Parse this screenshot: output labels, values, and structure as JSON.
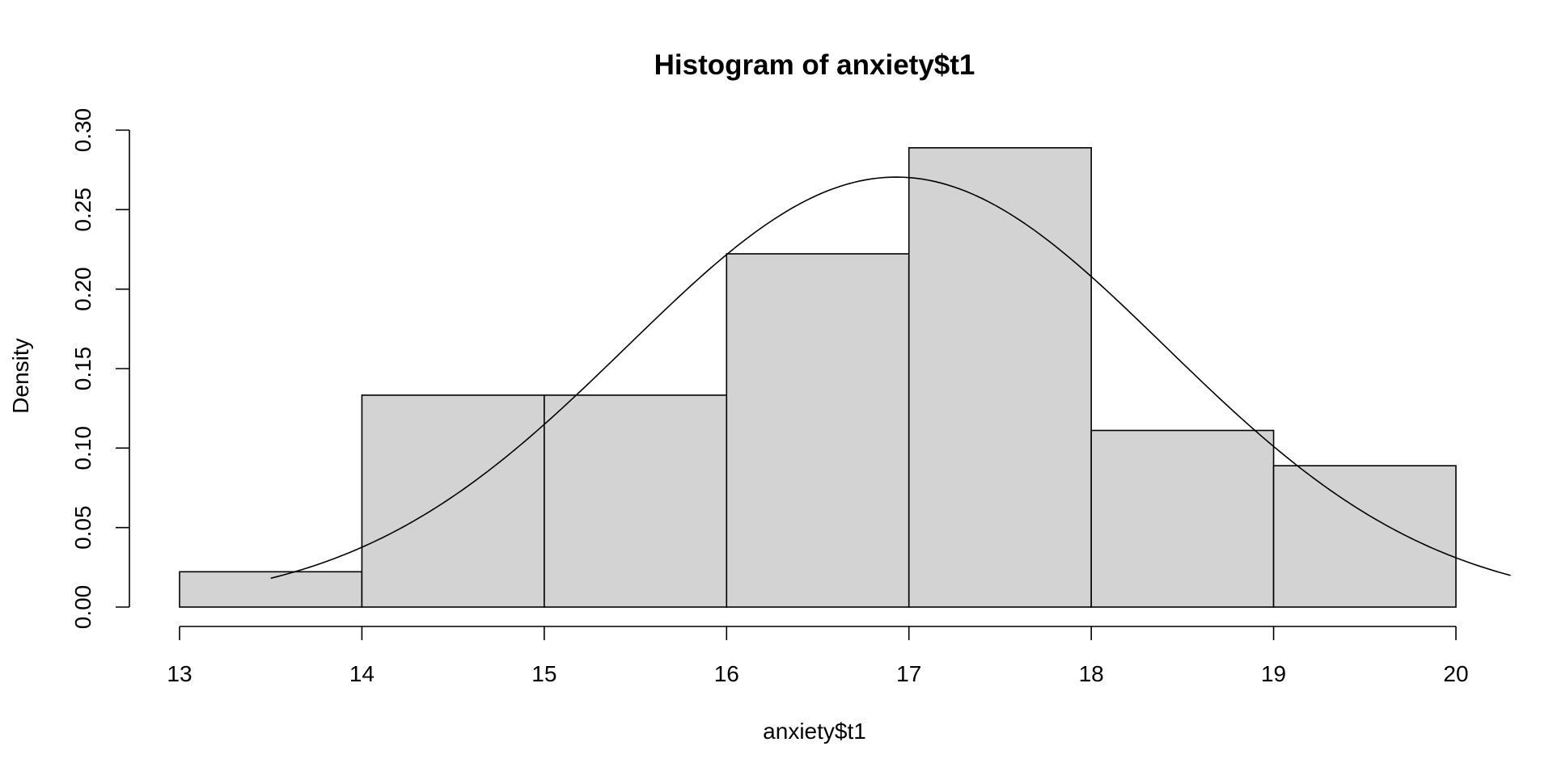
{
  "chart_data": {
    "type": "bar",
    "subtype": "histogram-with-density-curve",
    "title": "Histogram of anxiety$t1",
    "xlabel": "anxiety$t1",
    "ylabel": "Density",
    "bins": [
      {
        "from": 13,
        "to": 14,
        "density": 0.0222
      },
      {
        "from": 14,
        "to": 15,
        "density": 0.1333
      },
      {
        "from": 15,
        "to": 16,
        "density": 0.1333
      },
      {
        "from": 16,
        "to": 17,
        "density": 0.2222
      },
      {
        "from": 17,
        "to": 18,
        "density": 0.2889
      },
      {
        "from": 18,
        "to": 19,
        "density": 0.1111
      },
      {
        "from": 19,
        "to": 20,
        "density": 0.0889
      }
    ],
    "density_curve": {
      "type": "normal",
      "mean": 16.93,
      "sd": 1.475,
      "x_from": 13.5,
      "x_to": 20.3
    },
    "xlim": [
      13,
      20
    ],
    "ylim": [
      0,
      0.3
    ],
    "x_ticks": [
      13,
      14,
      15,
      16,
      17,
      18,
      19,
      20
    ],
    "y_ticks": [
      "0.00",
      "0.05",
      "0.10",
      "0.15",
      "0.20",
      "0.25",
      "0.30"
    ],
    "colors": {
      "bar_fill": "#d3d3d3",
      "bar_stroke": "#000000",
      "curve": "#000000"
    },
    "grid": false,
    "legend": "none"
  }
}
